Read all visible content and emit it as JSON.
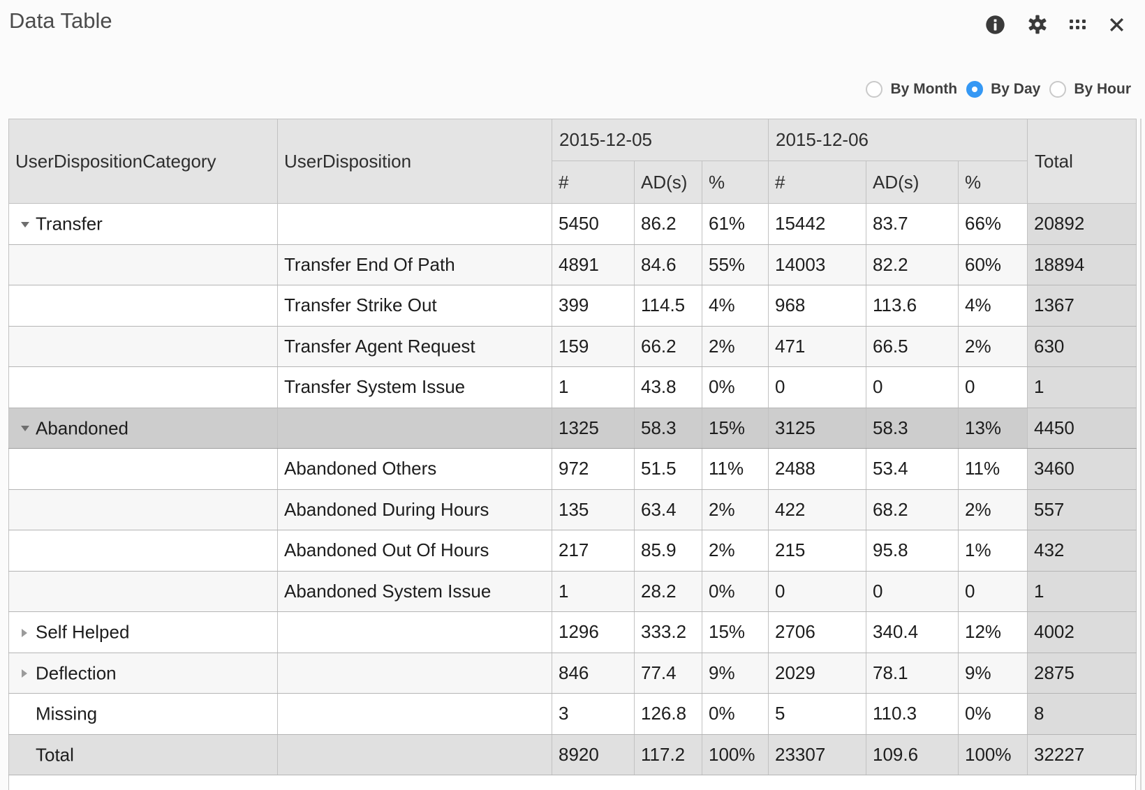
{
  "widget": {
    "title": "Data Table",
    "toolbar": {
      "icons": [
        "info-icon",
        "gear-icon",
        "grid-handle-icon",
        "close-icon"
      ]
    }
  },
  "view_toggle": {
    "options": [
      {
        "label": "By Month",
        "selected": false
      },
      {
        "label": "By Day",
        "selected": true
      },
      {
        "label": "By Hour",
        "selected": false
      }
    ]
  },
  "table": {
    "columns": {
      "category": "UserDispositionCategory",
      "disposition": "UserDisposition",
      "date_groups": [
        {
          "label": "2015-12-05",
          "sub": [
            "#",
            "AD(s)",
            "%"
          ]
        },
        {
          "label": "2015-12-06",
          "sub": [
            "#",
            "AD(s)",
            "%"
          ]
        }
      ],
      "total": "Total"
    },
    "rows": [
      {
        "category": "Transfer",
        "disposition": "",
        "arrow": "expanded",
        "selected": false,
        "is_total": false,
        "values": [
          "5450",
          "86.2",
          "61%",
          "15442",
          "83.7",
          "66%",
          "20892"
        ]
      },
      {
        "category": "",
        "disposition": "Transfer End Of Path",
        "arrow": "none",
        "selected": false,
        "is_total": false,
        "values": [
          "4891",
          "84.6",
          "55%",
          "14003",
          "82.2",
          "60%",
          "18894"
        ]
      },
      {
        "category": "",
        "disposition": "Transfer Strike Out",
        "arrow": "none",
        "selected": false,
        "is_total": false,
        "values": [
          "399",
          "114.5",
          "4%",
          "968",
          "113.6",
          "4%",
          "1367"
        ]
      },
      {
        "category": "",
        "disposition": "Transfer Agent Request",
        "arrow": "none",
        "selected": false,
        "is_total": false,
        "values": [
          "159",
          "66.2",
          "2%",
          "471",
          "66.5",
          "2%",
          "630"
        ]
      },
      {
        "category": "",
        "disposition": "Transfer System Issue",
        "arrow": "none",
        "selected": false,
        "is_total": false,
        "values": [
          "1",
          "43.8",
          "0%",
          "0",
          "0",
          "0",
          "1"
        ]
      },
      {
        "category": "Abandoned",
        "disposition": "",
        "arrow": "expanded",
        "selected": true,
        "is_total": false,
        "values": [
          "1325",
          "58.3",
          "15%",
          "3125",
          "58.3",
          "13%",
          "4450"
        ]
      },
      {
        "category": "",
        "disposition": "Abandoned Others",
        "arrow": "none",
        "selected": false,
        "is_total": false,
        "values": [
          "972",
          "51.5",
          "11%",
          "2488",
          "53.4",
          "11%",
          "3460"
        ]
      },
      {
        "category": "",
        "disposition": "Abandoned During Hours",
        "arrow": "none",
        "selected": false,
        "is_total": false,
        "values": [
          "135",
          "63.4",
          "2%",
          "422",
          "68.2",
          "2%",
          "557"
        ]
      },
      {
        "category": "",
        "disposition": "Abandoned Out Of Hours",
        "arrow": "none",
        "selected": false,
        "is_total": false,
        "values": [
          "217",
          "85.9",
          "2%",
          "215",
          "95.8",
          "1%",
          "432"
        ]
      },
      {
        "category": "",
        "disposition": "Abandoned System Issue",
        "arrow": "none",
        "selected": false,
        "is_total": false,
        "values": [
          "1",
          "28.2",
          "0%",
          "0",
          "0",
          "0",
          "1"
        ]
      },
      {
        "category": "Self Helped",
        "disposition": "",
        "arrow": "collapsed",
        "selected": false,
        "is_total": false,
        "values": [
          "1296",
          "333.2",
          "15%",
          "2706",
          "340.4",
          "12%",
          "4002"
        ]
      },
      {
        "category": "Deflection",
        "disposition": "",
        "arrow": "collapsed",
        "selected": false,
        "is_total": false,
        "values": [
          "846",
          "77.4",
          "9%",
          "2029",
          "78.1",
          "9%",
          "2875"
        ]
      },
      {
        "category": "Missing",
        "disposition": "",
        "arrow": "none",
        "selected": false,
        "is_total": false,
        "values": [
          "3",
          "126.8",
          "0%",
          "5",
          "110.3",
          "0%",
          "8"
        ]
      },
      {
        "category": "Total",
        "disposition": "",
        "arrow": "none",
        "selected": false,
        "is_total": true,
        "values": [
          "8920",
          "117.2",
          "100%",
          "23307",
          "109.6",
          "100%",
          "32227"
        ]
      }
    ]
  },
  "colors": {
    "accent_blue": "#3598f4",
    "header_bg": "#e4e4e4",
    "total_column_bg": "#dcdcdc",
    "selected_row_bg": "#cdcdcd",
    "stripe_row_bg": "#f7f7f7",
    "total_row_bg": "#e0e0e0",
    "icon_color": "#3a3a3a"
  }
}
